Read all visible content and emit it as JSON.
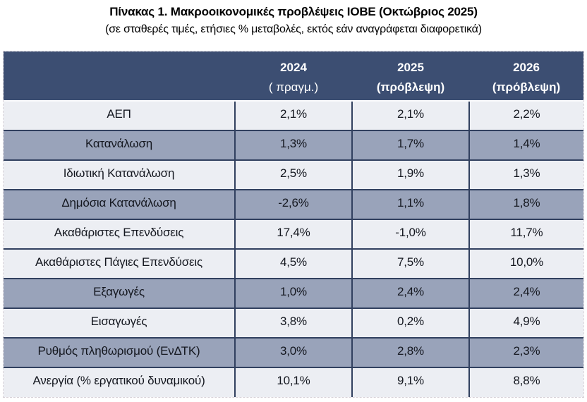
{
  "title": "Πίνακας 1. Μακροοικονομικές προβλέψεις ΙΟΒΕ (Οκτώβριος 2025)",
  "subtitle": "(σε σταθερές τιμές, ετήσιες % μεταβολές, εκτός εάν αναγράφεται διαφορετικά)",
  "colors": {
    "header_bg": "#3C4E72",
    "header_text": "#FFFFFF",
    "band_gray": "#99A3BA",
    "band_light": "#ECEEF3",
    "grid": "#31405F",
    "body_text": "#14171F",
    "outer_dash": "#D8D2D8"
  },
  "chart_data": {
    "type": "table",
    "title": "Πίνακας 1. Μακροοικονομικές προβλέψεις ΙΟΒΕ (Οκτώβριος 2025)",
    "subtitle": "(σε σταθερές τιμές, ετήσιες % μεταβολές, εκτός εάν αναγράφεται διαφορετικά)",
    "column_headers": [
      {
        "line1": "2024",
        "line2": "( πραγμ.)"
      },
      {
        "line1": "2025",
        "line2": "(πρόβλεψη)"
      },
      {
        "line1": "2026",
        "line2": "(πρόβλεψη)"
      }
    ],
    "rows": [
      {
        "label": "ΑΕΠ",
        "values": [
          "2,1%",
          "2,1%",
          "2,2%"
        ],
        "shade": "light"
      },
      {
        "label": "Κατανάλωση",
        "values": [
          "1,3%",
          "1,7%",
          "1,4%"
        ],
        "shade": "gray"
      },
      {
        "label": "Ιδιωτική Κατανάλωση",
        "values": [
          "2,5%",
          "1,9%",
          "1,3%"
        ],
        "shade": "light"
      },
      {
        "label": "Δημόσια Κατανάλωση",
        "values": [
          "-2,6%",
          "1,1%",
          "1,8%"
        ],
        "shade": "gray"
      },
      {
        "label": "Ακαθάριστες Επενδύσεις",
        "values": [
          "17,4%",
          "-1,0%",
          "11,7%"
        ],
        "shade": "light"
      },
      {
        "label": "Ακαθάριστες Πάγιες Επενδύσεις",
        "values": [
          "4,5%",
          "7,5%",
          "10,0%"
        ],
        "shade": "light"
      },
      {
        "label": "Εξαγωγές",
        "values": [
          "1,0%",
          "2,4%",
          "2,4%"
        ],
        "shade": "gray"
      },
      {
        "label": "Εισαγωγές",
        "values": [
          "3,8%",
          "0,2%",
          "4,9%"
        ],
        "shade": "light"
      },
      {
        "label": "Ρυθμός πληθωρισμού (ΕνΔΤΚ)",
        "values": [
          "3,0%",
          "2,8%",
          "2,3%"
        ],
        "shade": "gray"
      },
      {
        "label": "Ανεργία (% εργατικού δυναμικού)",
        "values": [
          "10,1%",
          "9,1%",
          "8,8%"
        ],
        "shade": "light"
      }
    ]
  }
}
